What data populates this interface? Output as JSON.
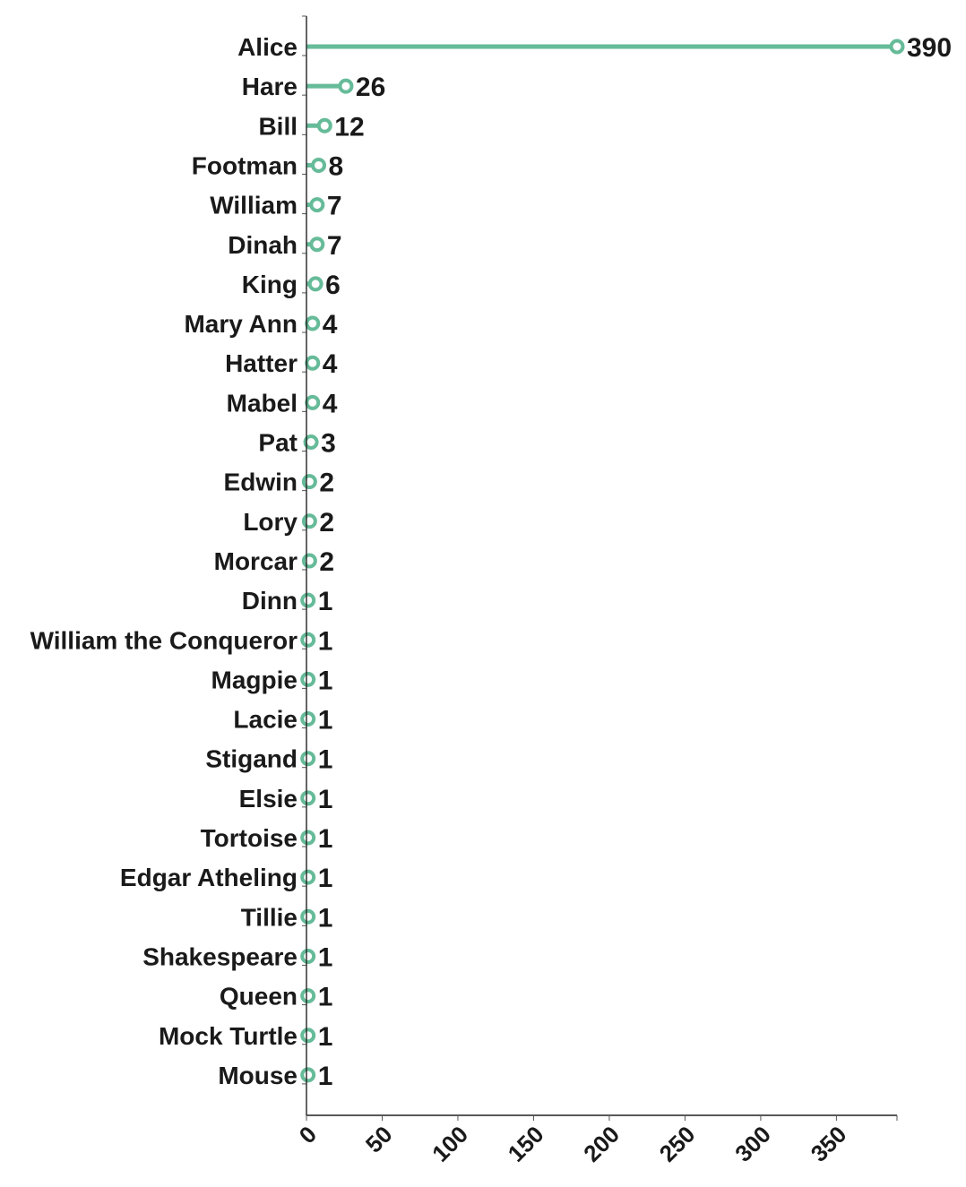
{
  "chart_data": {
    "type": "lollipop",
    "orientation": "horizontal",
    "categories": [
      "Alice",
      "Hare",
      "Bill",
      "Footman",
      "William",
      "Dinah",
      "King",
      "Mary Ann",
      "Hatter",
      "Mabel",
      "Pat",
      "Edwin",
      "Lory",
      "Morcar",
      "Dinn",
      "William the Conqueror",
      "Magpie",
      "Lacie",
      "Stigand",
      "Elsie",
      "Tortoise",
      "Edgar Atheling",
      "Tillie",
      "Shakespeare",
      "Queen",
      "Mock Turtle",
      "Mouse"
    ],
    "values": [
      390,
      26,
      12,
      8,
      7,
      7,
      6,
      4,
      4,
      4,
      3,
      2,
      2,
      2,
      1,
      1,
      1,
      1,
      1,
      1,
      1,
      1,
      1,
      1,
      1,
      1,
      1
    ],
    "x_ticks": [
      0,
      50,
      100,
      150,
      200,
      250,
      300,
      350
    ],
    "xlim": [
      0,
      390
    ],
    "data_labels": true,
    "grid": false,
    "colors": {
      "lollipop": "#66bb99",
      "text": "#1a1a1a",
      "axis": "#222222"
    }
  }
}
